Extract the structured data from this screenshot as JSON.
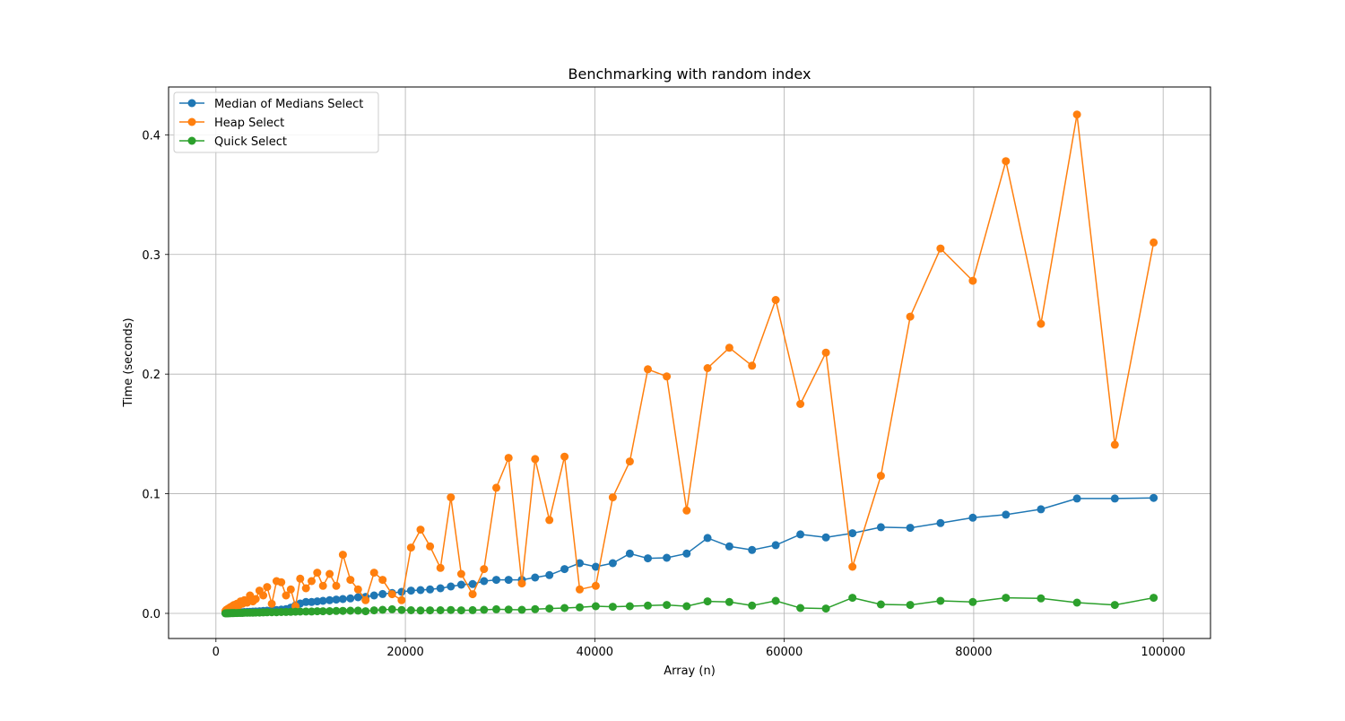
{
  "chart_data": {
    "type": "line",
    "title": "Benchmarking with random index",
    "xlabel": "Array (n)",
    "ylabel": "Time (seconds)",
    "xlim": [
      -5000,
      105000
    ],
    "ylim": [
      -0.021,
      0.44
    ],
    "xticks": [
      0,
      20000,
      40000,
      60000,
      80000,
      100000
    ],
    "xtick_labels": [
      "0",
      "20000",
      "40000",
      "60000",
      "80000",
      "100000"
    ],
    "yticks": [
      0.0,
      0.1,
      0.2,
      0.3,
      0.4
    ],
    "ytick_labels": [
      "0.0",
      "0.1",
      "0.2",
      "0.3",
      "0.4"
    ],
    "grid": true,
    "legend_position": "top-left",
    "x": [
      1000,
      1100,
      1200,
      1300,
      1400,
      1500,
      1600,
      1700,
      1800,
      1900,
      2000,
      2200,
      2400,
      2600,
      2800,
      3000,
      3300,
      3600,
      3900,
      4200,
      4600,
      5000,
      5400,
      5900,
      6400,
      6900,
      7400,
      7900,
      8400,
      8900,
      9500,
      10100,
      10700,
      11300,
      12000,
      12700,
      13400,
      14200,
      15000,
      15800,
      16700,
      17600,
      18600,
      19600,
      20600,
      21600,
      22600,
      23700,
      24800,
      25900,
      27100,
      28300,
      29600,
      30900,
      32300,
      33700,
      35200,
      36800,
      38400,
      40100,
      41900,
      43700,
      45600,
      47600,
      49700,
      51900,
      54200,
      56600,
      59100,
      61700,
      64400,
      67200,
      70200,
      73300,
      76500,
      79900,
      83400,
      87100,
      90900,
      94900,
      99000
    ],
    "series": [
      {
        "name": "Median of Medians Select",
        "color": "#1f77b4",
        "values": [
          0.0002,
          0.0003,
          0.0003,
          0.0003,
          0.0004,
          0.0004,
          0.0005,
          0.0005,
          0.0005,
          0.0006,
          0.0006,
          0.0007,
          0.0008,
          0.0009,
          0.001,
          0.0011,
          0.0012,
          0.0013,
          0.0015,
          0.0016,
          0.0018,
          0.002,
          0.0022,
          0.0025,
          0.0028,
          0.0031,
          0.0036,
          0.0048,
          0.0067,
          0.0082,
          0.0095,
          0.0095,
          0.01,
          0.0105,
          0.011,
          0.0115,
          0.012,
          0.0125,
          0.0135,
          0.0138,
          0.015,
          0.0162,
          0.017,
          0.018,
          0.019,
          0.0195,
          0.02,
          0.021,
          0.0225,
          0.024,
          0.0245,
          0.027,
          0.028,
          0.028,
          0.028,
          0.03,
          0.032,
          0.037,
          0.042,
          0.039,
          0.042,
          0.05,
          0.046,
          0.0465,
          0.05,
          0.063,
          0.056,
          0.053,
          0.057,
          0.066,
          0.0635,
          0.067,
          0.072,
          0.0715,
          0.0755,
          0.08,
          0.0825,
          0.087,
          0.096,
          0.096,
          0.0965
        ]
      },
      {
        "name": "Heap Select",
        "color": "#ff7f0e",
        "values": [
          0.002,
          0.003,
          0.0025,
          0.004,
          0.0035,
          0.005,
          0.0045,
          0.006,
          0.005,
          0.007,
          0.0055,
          0.008,
          0.0065,
          0.01,
          0.008,
          0.011,
          0.009,
          0.015,
          0.01,
          0.012,
          0.019,
          0.015,
          0.022,
          0.008,
          0.027,
          0.026,
          0.015,
          0.02,
          0.006,
          0.029,
          0.021,
          0.027,
          0.034,
          0.023,
          0.033,
          0.023,
          0.049,
          0.028,
          0.02,
          0.011,
          0.034,
          0.028,
          0.016,
          0.011,
          0.055,
          0.07,
          0.056,
          0.038,
          0.097,
          0.033,
          0.016,
          0.037,
          0.105,
          0.13,
          0.025,
          0.129,
          0.078,
          0.131,
          0.02,
          0.023,
          0.097,
          0.127,
          0.204,
          0.198,
          0.086,
          0.205,
          0.222,
          0.207,
          0.262,
          0.175,
          0.218,
          0.039,
          0.115,
          0.248,
          0.305,
          0.278,
          0.378,
          0.242,
          0.417,
          0.141,
          0.31
        ]
      },
      {
        "name": "Quick Select",
        "color": "#2ca02c",
        "values": [
          0.0001,
          0.0001,
          0.0002,
          0.0001,
          0.0002,
          0.0002,
          0.0002,
          0.0003,
          0.0002,
          0.0003,
          0.0003,
          0.0003,
          0.0004,
          0.0004,
          0.0004,
          0.0005,
          0.0005,
          0.0006,
          0.0006,
          0.0007,
          0.0007,
          0.0008,
          0.0009,
          0.001,
          0.001,
          0.0011,
          0.0012,
          0.0013,
          0.0014,
          0.0015,
          0.0016,
          0.0016,
          0.0018,
          0.0018,
          0.0019,
          0.002,
          0.0021,
          0.0022,
          0.0023,
          0.0018,
          0.0025,
          0.003,
          0.0034,
          0.0028,
          0.0026,
          0.0024,
          0.0025,
          0.0026,
          0.0028,
          0.0025,
          0.0027,
          0.003,
          0.0034,
          0.0032,
          0.003,
          0.0035,
          0.004,
          0.0045,
          0.005,
          0.006,
          0.0055,
          0.006,
          0.0065,
          0.007,
          0.006,
          0.01,
          0.0095,
          0.0065,
          0.0105,
          0.0045,
          0.004,
          0.013,
          0.0075,
          0.007,
          0.0105,
          0.0095,
          0.013,
          0.0125,
          0.009,
          0.007,
          0.013
        ]
      }
    ]
  }
}
